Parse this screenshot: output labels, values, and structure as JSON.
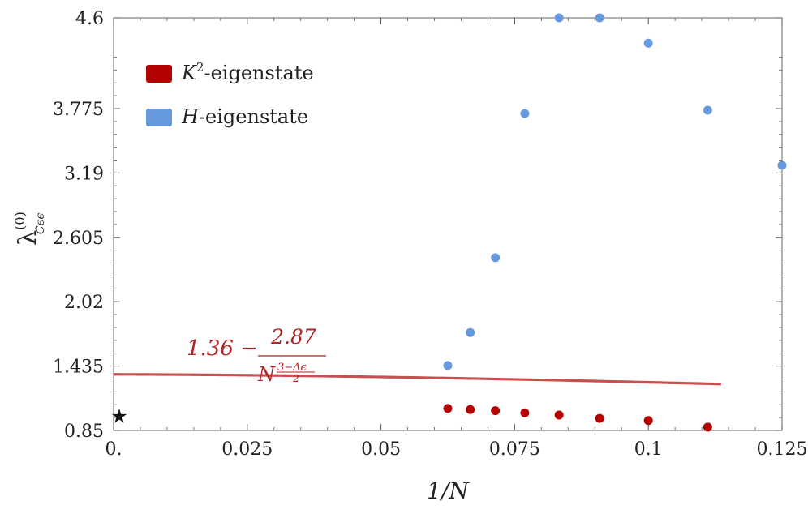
{
  "chart_data": {
    "type": "scatter",
    "xlabel": "1/N",
    "ylabel": "λ(0) Cϵϵ",
    "xlim": [
      0,
      0.125
    ],
    "ylim": [
      0.85,
      4.6
    ],
    "xticks": [
      0,
      0.025,
      0.05,
      0.075,
      0.1,
      0.125
    ],
    "xtick_labels": [
      "0.",
      "0.025",
      "0.05",
      "0.075",
      "0.1",
      "0.125"
    ],
    "yticks": [
      0.85,
      1.435,
      2.02,
      2.605,
      3.19,
      3.775,
      4.6
    ],
    "ytick_labels": [
      "0.85",
      "1.435",
      "2.02",
      "2.605",
      "3.19",
      "3.775",
      "4.6"
    ],
    "grid": false,
    "legend_position": "top-left",
    "series": [
      {
        "name": "K²-eigenstate",
        "color": "#b30000",
        "x": [
          0.0625,
          0.0667,
          0.0714,
          0.0769,
          0.0833,
          0.0909,
          0.1,
          0.1111
        ],
        "y": [
          1.05,
          1.04,
          1.03,
          1.01,
          0.99,
          0.96,
          0.94,
          0.88
        ]
      },
      {
        "name": "H-eigenstate",
        "color": "#6699dd",
        "x": [
          0.0625,
          0.0667,
          0.0714,
          0.0769,
          0.0833,
          0.0909,
          0.1,
          0.1111,
          0.125
        ],
        "y": [
          1.44,
          1.74,
          2.42,
          3.73,
          4.6,
          4.6,
          4.37,
          3.76,
          3.26
        ]
      }
    ],
    "fit": {
      "color": "#c85050",
      "a": 1.36,
      "b": 2.87,
      "exponent": 1.6,
      "x_range": [
        0,
        0.1136
      ]
    },
    "annotation": {
      "lead": "1.36 −",
      "numerator": "2.87",
      "denominator_base": "N",
      "denominator_exponent": "3−Δϵ",
      "denominator_exponent_den": "2"
    },
    "star": {
      "x": 0.0,
      "y": 0.98,
      "symbol": "★"
    },
    "legend": [
      {
        "base": "K",
        "sup": "2",
        "suffix": "-eigenstate"
      },
      {
        "base": "H",
        "sup": "",
        "suffix": "-eigenstate"
      }
    ],
    "ylabel_parts": {
      "base": "λ",
      "sup": "(0)",
      "sub": "Cϵϵ"
    }
  }
}
